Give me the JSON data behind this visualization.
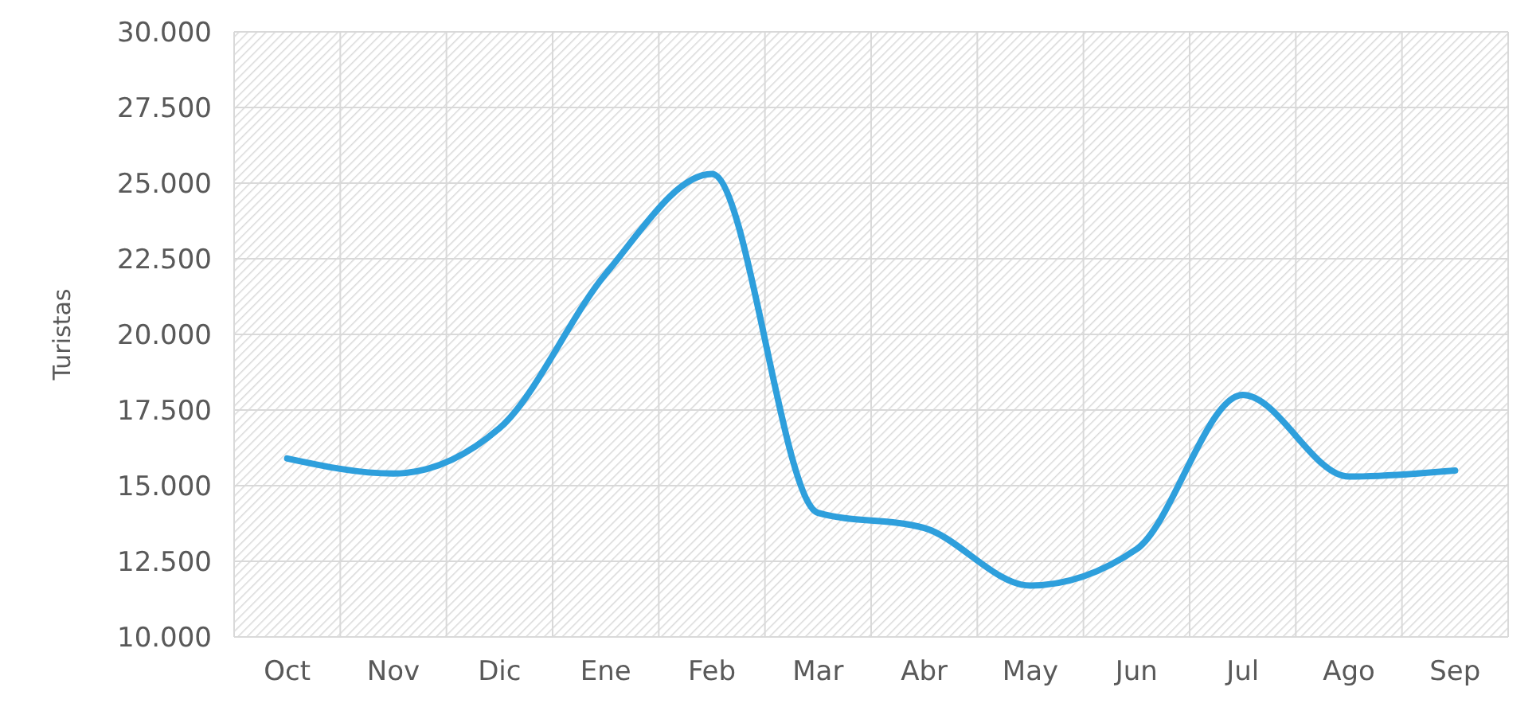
{
  "chart_data": {
    "type": "line",
    "ylabel": "Turistas",
    "categories": [
      "Oct",
      "Nov",
      "Dic",
      "Ene",
      "Feb",
      "Mar",
      "Abr",
      "May",
      "Jun",
      "Jul",
      "Ago",
      "Sep"
    ],
    "series": [
      {
        "color": "#2e9fdc",
        "values": [
          15900,
          15400,
          16900,
          22000,
          25300,
          14100,
          13600,
          11700,
          12900,
          18000,
          15300,
          15500
        ]
      }
    ],
    "ylim": [
      10000,
      30000
    ],
    "yticks": [
      {
        "value": 10000,
        "label": "10.000"
      },
      {
        "value": 12500,
        "label": "12.500"
      },
      {
        "value": 15000,
        "label": "15.000"
      },
      {
        "value": 17500,
        "label": "17.500"
      },
      {
        "value": 20000,
        "label": "20.000"
      },
      {
        "value": 22500,
        "label": "22.500"
      },
      {
        "value": 25000,
        "label": "25.000"
      },
      {
        "value": 27500,
        "label": "27.500"
      },
      {
        "value": 30000,
        "label": "30.000"
      }
    ],
    "grid": true,
    "marker": "none",
    "line_style": "solid"
  }
}
